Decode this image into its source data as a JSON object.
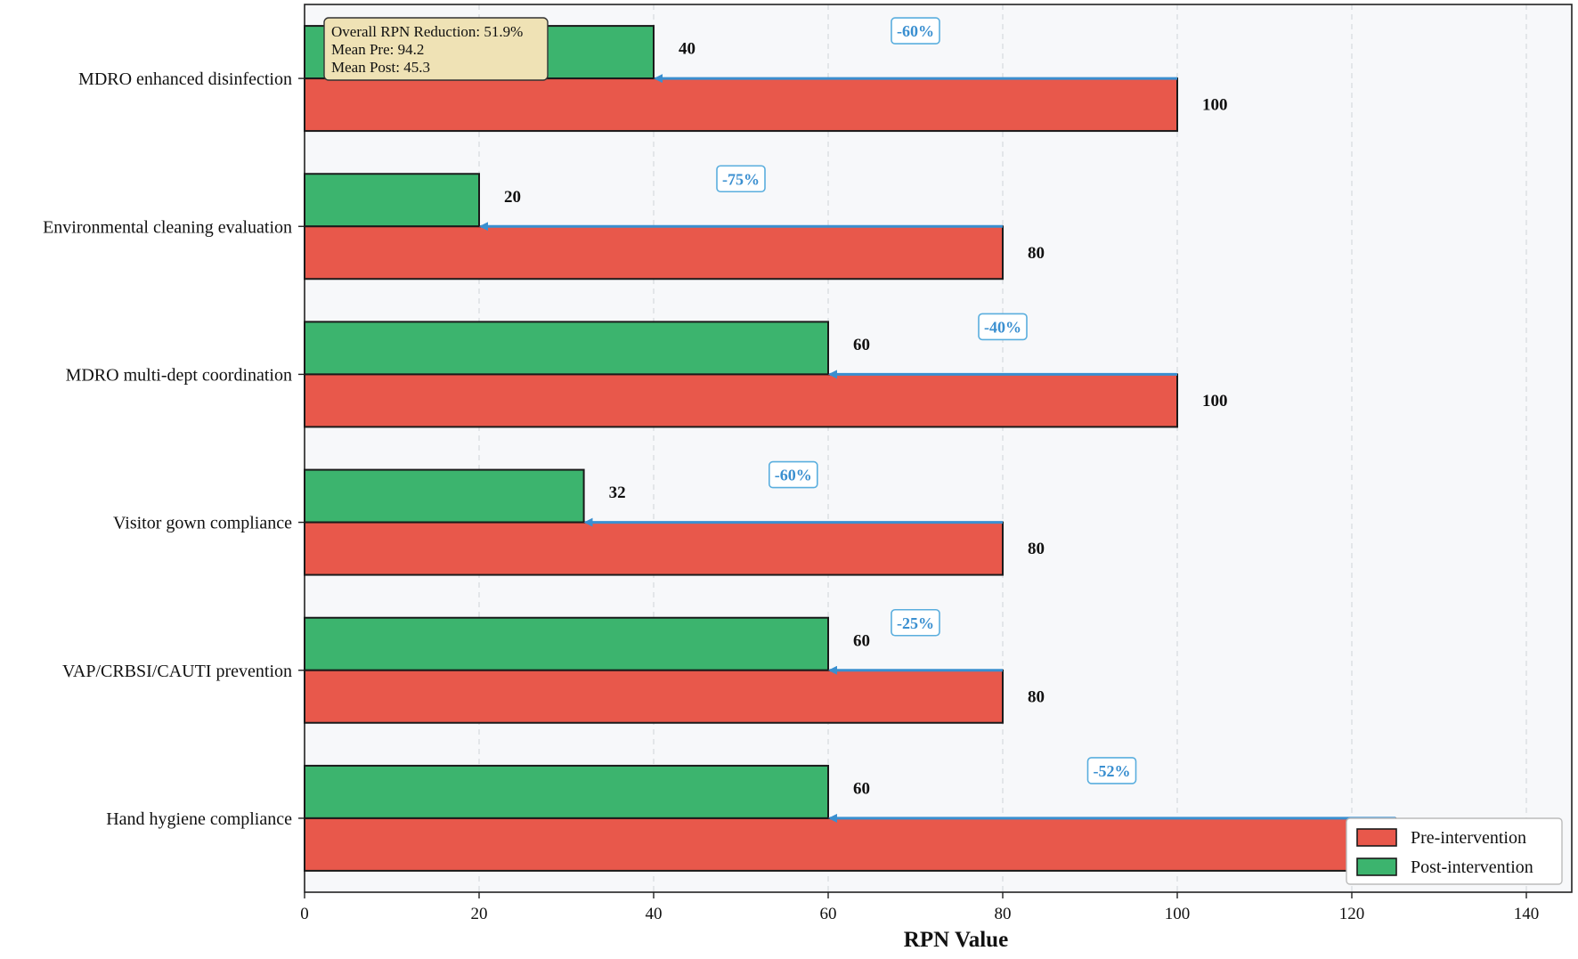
{
  "chart_data": {
    "type": "bar",
    "orientation": "horizontal",
    "categories": [
      "MDRO enhanced disinfection",
      "Environmental cleaning evaluation",
      "MDRO multi-dept coordination",
      "Visitor gown compliance",
      "VAP/CRBSI/CAUTI prevention",
      "Hand hygiene compliance"
    ],
    "series": [
      {
        "name": "Pre-intervention",
        "color": "#e8584b",
        "values": [
          100,
          80,
          100,
          80,
          80,
          125
        ]
      },
      {
        "name": "Post-intervention",
        "color": "#3cb46e",
        "values": [
          40,
          20,
          60,
          32,
          60,
          60
        ]
      }
    ],
    "value_labels": {
      "pre": [
        "100",
        "80",
        "100",
        "80",
        "80",
        ""
      ],
      "post": [
        "40",
        "20",
        "60",
        "32",
        "60",
        "60"
      ]
    },
    "reduction_labels": [
      "-60%",
      "-75%",
      "-40%",
      "-60%",
      "-25%",
      "-52%"
    ],
    "arrow_color": "#3a8fd0",
    "xlabel": "RPN Value",
    "xlim": [
      0,
      145
    ],
    "xticks": [
      0,
      20,
      40,
      60,
      80,
      100,
      120,
      140
    ],
    "xtick_labels": [
      "0",
      "20",
      "40",
      "60",
      "80",
      "100",
      "120",
      "140"
    ],
    "grid": "x-dashed",
    "legend_position": "bottom-right",
    "summary_box": {
      "lines": [
        "Overall RPN Reduction: 51.9%",
        "Mean Pre: 94.2",
        "Mean Post: 45.3"
      ]
    }
  }
}
